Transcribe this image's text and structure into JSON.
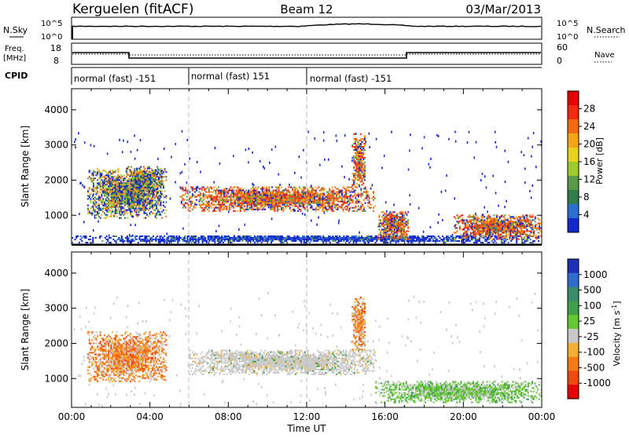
{
  "header": {
    "station": "Kerguelen (fitACF)",
    "beam": "Beam 12",
    "date": "03/Mar/2013"
  },
  "noise_panel": {
    "left_label": "N.Sky",
    "right_label": "N.Search",
    "left_ticks": [
      "10^5",
      "10^0"
    ],
    "right_ticks": [
      "10^5",
      "10^0"
    ]
  },
  "freq_panel": {
    "left_label_1": "Freq.",
    "left_label_2": "[MHz]",
    "right_label": "Nave",
    "left_ticks": [
      "18",
      "8"
    ],
    "right_ticks": [
      "60",
      "0"
    ]
  },
  "cpid_panel": {
    "label": "CPID",
    "segments": [
      {
        "label": "normal (fast) -151",
        "start_hour": 0,
        "end_hour": 6
      },
      {
        "label": "normal (fast) 151",
        "start_hour": 6,
        "end_hour": 12
      },
      {
        "label": "normal (fast) -151",
        "start_hour": 12,
        "end_hour": 24
      }
    ]
  },
  "colors": {
    "power_scale": [
      "#1428d2",
      "#2a6fd0",
      "#2e7d4a",
      "#5a9a48",
      "#9ccc2c",
      "#e8d21a",
      "#f5a514",
      "#f56a10",
      "#f52a10",
      "#e60000"
    ],
    "velocity_scale": [
      "#1e2fb8",
      "#2f6ed0",
      "#3a8c6a",
      "#3fa04a",
      "#63c832",
      "#c8c8c8",
      "#f5b034",
      "#f57a14",
      "#f04a10",
      "#e60000"
    ]
  },
  "chart_data": [
    {
      "type": "heatmap",
      "name": "power",
      "ylabel": "Slant Range [km]",
      "y_ticks": [
        1000,
        2000,
        3000,
        4000
      ],
      "ylim": [
        180,
        4600
      ],
      "colorbar_label": "Power [dB]",
      "colorbar_ticks": [
        "4",
        "8",
        "12",
        "16",
        "20",
        "24",
        "28"
      ],
      "colorbar_range": [
        0,
        32
      ],
      "echo_regions": [
        {
          "t_start": 0.0,
          "t_end": 24.0,
          "r_start": 200,
          "r_end": 420,
          "level": "low"
        },
        {
          "t_start": 0.8,
          "t_end": 4.8,
          "r_start": 900,
          "r_end": 2300,
          "level": "medium"
        },
        {
          "t_start": 2.8,
          "t_end": 4.6,
          "r_start": 1500,
          "r_end": 2400,
          "level": "medium"
        },
        {
          "t_start": 5.5,
          "t_end": 15.5,
          "r_start": 1100,
          "r_end": 1800,
          "level": "high"
        },
        {
          "t_start": 14.3,
          "t_end": 15.0,
          "r_start": 1800,
          "r_end": 3300,
          "level": "high"
        },
        {
          "t_start": 15.6,
          "t_end": 17.2,
          "r_start": 300,
          "r_end": 1100,
          "level": "high"
        },
        {
          "t_start": 19.5,
          "t_end": 24.0,
          "r_start": 300,
          "r_end": 1000,
          "level": "high"
        }
      ]
    },
    {
      "type": "heatmap",
      "name": "velocity",
      "xlabel": "Time UT",
      "ylabel": "Slant Range [km]",
      "x_ticks": [
        "00:00",
        "04:00",
        "08:00",
        "12:00",
        "16:00",
        "20:00",
        "00:00"
      ],
      "xlim": [
        0,
        24
      ],
      "y_ticks": [
        1000,
        2000,
        3000,
        4000
      ],
      "ylim": [
        180,
        4600
      ],
      "colorbar_label": "Velocity [m s-1]",
      "colorbar_ticks": [
        "1000",
        "500",
        "100",
        "25",
        "-25",
        "-100",
        "-500",
        "-1000"
      ],
      "echo_regions": [
        {
          "t_start": 0.8,
          "t_end": 4.8,
          "r_start": 900,
          "r_end": 2300,
          "level": "receding"
        },
        {
          "t_start": 6.0,
          "t_end": 15.5,
          "r_start": 1100,
          "r_end": 1800,
          "level": "near-zero"
        },
        {
          "t_start": 14.3,
          "t_end": 15.0,
          "r_start": 1800,
          "r_end": 3300,
          "level": "receding"
        },
        {
          "t_start": 15.5,
          "t_end": 24.0,
          "r_start": 300,
          "r_end": 900,
          "level": "approaching-weak"
        }
      ]
    }
  ]
}
